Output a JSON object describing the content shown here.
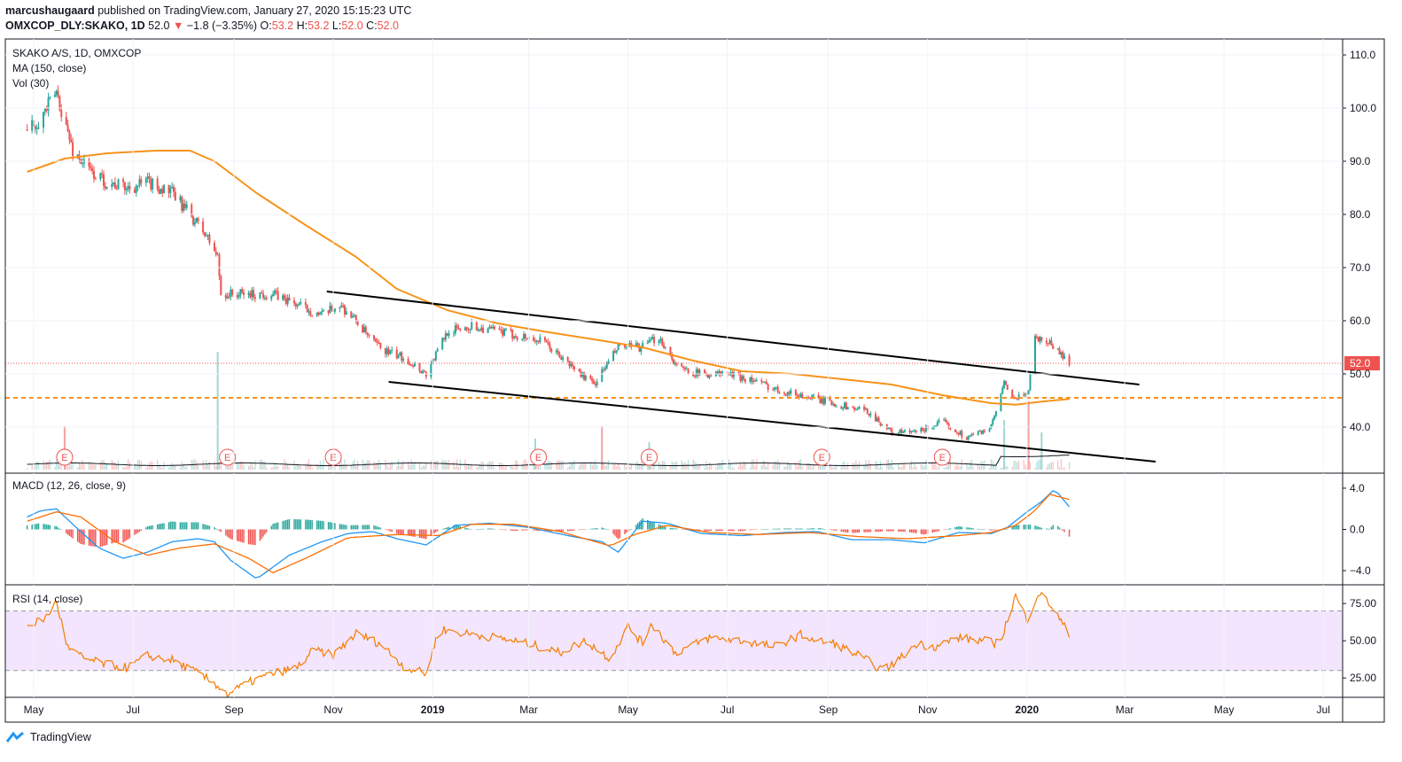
{
  "header": {
    "author": "marcushaugaard",
    "published_text": "published on TradingView.com, January 27, 2020 15:15:23 UTC",
    "symbol": "OMXCOP_DLY:SKAKO, 1D",
    "last": "52.0",
    "change": "−1.8 (−3.35%)",
    "o_label": "O:",
    "o": "53.2",
    "h_label": "H:",
    "h": "53.2",
    "l_label": "L:",
    "l": "52.0",
    "c_label": "C:",
    "c": "52.0"
  },
  "legend": {
    "main": "SKAKO A/S, 1D, OMXCOP",
    "ma": "MA (150, close)",
    "vol": "Vol (30)",
    "macd": "MACD (12, 26, close, 9)",
    "rsi": "RSI (14, close)"
  },
  "footer": {
    "brand": "TradingView"
  },
  "colors": {
    "up": "#26a69a",
    "down": "#ef5350",
    "ma": "#f7931a",
    "macd": "#2196f3",
    "signal": "#ff6d00",
    "rsi": "#f57c00",
    "rsi_band": "#f3e5fd",
    "border": "#131722"
  },
  "chart_data": [
    {
      "type": "candlestick",
      "title": "SKAKO A/S, 1D, OMXCOP",
      "ylim": [
        32,
        113
      ],
      "y_ticks": [
        "110.0",
        "100.0",
        "90.0",
        "80.0",
        "70.0",
        "60.0",
        "50.0",
        "40.0"
      ],
      "x_ticks": [
        "May",
        "Jul",
        "Sep",
        "Nov",
        "2019",
        "Mar",
        "May",
        "Jul",
        "Sep",
        "Nov",
        "2020",
        "Mar",
        "May",
        "Jul"
      ],
      "last_price_label": "52.0",
      "price_path": {
        "dates": [
          "2018-04-27",
          "2018-05-05",
          "2018-05-15",
          "2018-05-25",
          "2018-06-05",
          "2018-06-15",
          "2018-06-28",
          "2018-07-10",
          "2018-07-25",
          "2018-08-05",
          "2018-08-15",
          "2018-08-22",
          "2018-08-24",
          "2018-09-05",
          "2018-09-25",
          "2018-10-10",
          "2018-10-25",
          "2018-11-05",
          "2018-11-15",
          "2018-11-25",
          "2018-12-05",
          "2018-12-15",
          "2018-12-28",
          "2019-01-10",
          "2019-01-25",
          "2019-02-10",
          "2019-02-25",
          "2019-03-10",
          "2019-03-25",
          "2019-04-10",
          "2019-04-25",
          "2019-05-10",
          "2019-05-20",
          "2019-06-01",
          "2019-06-15",
          "2019-07-01",
          "2019-07-15",
          "2019-08-01",
          "2019-08-15",
          "2019-08-28",
          "2019-09-10",
          "2019-09-25",
          "2019-10-10",
          "2019-10-25",
          "2019-11-10",
          "2019-11-25",
          "2019-12-10",
          "2019-12-18",
          "2019-12-25",
          "2020-01-02",
          "2020-01-05",
          "2020-01-15",
          "2020-01-27"
        ],
        "close": [
          96,
          98,
          103,
          92,
          88,
          86,
          85,
          86,
          84,
          80,
          76,
          72,
          65,
          65,
          65,
          63,
          61,
          63,
          60,
          56,
          54,
          53,
          50,
          58,
          59,
          58,
          57,
          56,
          52,
          48,
          55,
          55,
          57,
          51,
          50,
          50,
          49,
          47,
          46,
          45,
          44,
          43,
          39,
          39,
          41,
          38,
          40,
          48,
          45,
          47,
          57,
          56,
          52
        ]
      },
      "moving_average": {
        "name": "MA (150, close)",
        "dates": [
          "2018-04-27",
          "2018-05-20",
          "2018-06-15",
          "2018-07-15",
          "2018-08-05",
          "2018-08-20",
          "2018-09-15",
          "2018-10-15",
          "2018-11-15",
          "2018-12-10",
          "2019-01-10",
          "2019-02-10",
          "2019-03-10",
          "2019-04-10",
          "2019-05-10",
          "2019-06-10",
          "2019-07-10",
          "2019-08-10",
          "2019-09-10",
          "2019-10-10",
          "2019-11-10",
          "2019-12-10",
          "2019-12-25",
          "2020-01-10",
          "2020-01-27"
        ],
        "values": [
          88,
          90.5,
          91.5,
          92,
          92,
          90,
          84,
          78,
          72,
          66,
          62,
          59.5,
          58,
          56.5,
          55,
          52.5,
          50.5,
          50,
          49,
          48,
          46,
          44.5,
          44.2,
          44.8,
          45.3
        ]
      },
      "horizontal_line": 45.5,
      "channel_upper": [
        [
          "2018-10-28",
          65.5
        ],
        [
          "2020-03-10",
          48.0
        ]
      ],
      "channel_lower": [
        [
          "2018-12-05",
          48.5
        ],
        [
          "2020-03-20",
          33.5
        ]
      ],
      "earnings_markers": [
        "2018-05-20",
        "2018-08-28",
        "2018-11-01",
        "2019-03-07",
        "2019-05-14",
        "2019-08-28",
        "2019-11-10"
      ],
      "earnings_label": "E",
      "volume": {
        "name": "Vol (30)",
        "spikes": [
          [
            "2018-05-20",
            0.35
          ],
          [
            "2018-08-22",
            0.95
          ],
          [
            "2019-03-05",
            0.25
          ],
          [
            "2019-04-15",
            0.35
          ],
          [
            "2019-05-14",
            0.22
          ],
          [
            "2019-12-18",
            0.4
          ],
          [
            "2020-01-02",
            0.55
          ],
          [
            "2020-01-10",
            0.3
          ]
        ]
      }
    },
    {
      "type": "line",
      "title": "MACD (12, 26, close, 9)",
      "ylim": [
        -5.2,
        5.2
      ],
      "y_ticks": [
        "4.0",
        "0.0",
        "−4.0"
      ],
      "series": [
        {
          "name": "MACD",
          "dates": [
            "2018-04-27",
            "2018-05-05",
            "2018-05-15",
            "2018-05-25",
            "2018-06-10",
            "2018-06-25",
            "2018-07-10",
            "2018-07-25",
            "2018-08-10",
            "2018-08-20",
            "2018-08-30",
            "2018-09-15",
            "2018-10-05",
            "2018-10-25",
            "2018-11-10",
            "2018-11-25",
            "2018-12-10",
            "2018-12-28",
            "2019-01-15",
            "2019-02-05",
            "2019-03-01",
            "2019-03-25",
            "2019-04-15",
            "2019-04-25",
            "2019-05-10",
            "2019-05-25",
            "2019-06-15",
            "2019-07-10",
            "2019-08-05",
            "2019-08-25",
            "2019-09-15",
            "2019-10-10",
            "2019-10-30",
            "2019-11-20",
            "2019-12-10",
            "2019-12-20",
            "2020-01-01",
            "2020-01-10",
            "2020-01-18",
            "2020-01-27"
          ],
          "values": [
            1.2,
            1.8,
            2.0,
            0.5,
            -1.8,
            -2.8,
            -2.2,
            -1.2,
            -0.9,
            -1.2,
            -3.0,
            -4.8,
            -2.5,
            -1.2,
            -0.4,
            -0.2,
            -0.9,
            -1.5,
            0.4,
            0.6,
            0.2,
            -0.6,
            -1.2,
            -2.2,
            0.8,
            0.6,
            -0.4,
            -0.6,
            -0.3,
            -0.2,
            -1.0,
            -1.0,
            -1.3,
            -0.3,
            -0.4,
            0.2,
            1.7,
            2.7,
            3.9,
            2.2
          ]
        },
        {
          "name": "Signal",
          "dates": [
            "2018-04-27",
            "2018-05-15",
            "2018-05-30",
            "2018-06-20",
            "2018-07-10",
            "2018-07-30",
            "2018-08-20",
            "2018-09-10",
            "2018-09-25",
            "2018-10-15",
            "2018-11-10",
            "2018-12-10",
            "2019-01-05",
            "2019-01-25",
            "2019-02-20",
            "2019-03-20",
            "2019-04-20",
            "2019-05-05",
            "2019-05-25",
            "2019-06-20",
            "2019-07-20",
            "2019-08-20",
            "2019-09-20",
            "2019-10-20",
            "2019-11-20",
            "2019-12-10",
            "2019-12-25",
            "2020-01-05",
            "2020-01-15",
            "2020-01-27"
          ],
          "values": [
            0.8,
            1.7,
            1.2,
            -1.2,
            -2.5,
            -1.8,
            -1.4,
            -2.8,
            -4.2,
            -2.8,
            -0.8,
            -0.5,
            -0.6,
            0.5,
            0.5,
            -0.2,
            -1.6,
            -0.5,
            0.4,
            -0.3,
            -0.5,
            -0.3,
            -0.7,
            -0.9,
            -0.6,
            -0.3,
            0.4,
            1.7,
            3.4,
            2.9
          ]
        }
      ]
    },
    {
      "type": "line",
      "title": "RSI (14, close)",
      "ylim": [
        12,
        87
      ],
      "y_ticks": [
        "75.00",
        "50.00",
        "25.00"
      ],
      "band": [
        30,
        70
      ],
      "series": [
        {
          "name": "RSI",
          "dates": [
            "2018-04-27",
            "2018-05-08",
            "2018-05-15",
            "2018-05-22",
            "2018-06-01",
            "2018-06-15",
            "2018-06-28",
            "2018-07-10",
            "2018-07-25",
            "2018-08-10",
            "2018-08-22",
            "2018-08-28",
            "2018-09-10",
            "2018-09-25",
            "2018-10-10",
            "2018-10-20",
            "2018-11-01",
            "2018-11-15",
            "2018-11-30",
            "2018-12-15",
            "2018-12-28",
            "2019-01-05",
            "2019-01-20",
            "2019-02-10",
            "2019-03-01",
            "2019-03-20",
            "2019-04-05",
            "2019-04-20",
            "2019-05-01",
            "2019-05-10",
            "2019-05-15",
            "2019-05-30",
            "2019-06-20",
            "2019-07-10",
            "2019-07-30",
            "2019-08-15",
            "2019-08-25",
            "2019-09-05",
            "2019-09-20",
            "2019-10-05",
            "2019-10-15",
            "2019-10-25",
            "2019-11-05",
            "2019-11-20",
            "2019-12-05",
            "2019-12-15",
            "2019-12-25",
            "2020-01-01",
            "2020-01-08",
            "2020-01-15",
            "2020-01-27"
          ],
          "values": [
            60,
            65,
            76,
            45,
            38,
            34,
            32,
            40,
            37,
            28,
            20,
            14,
            22,
            28,
            32,
            44,
            40,
            55,
            48,
            32,
            28,
            58,
            55,
            52,
            48,
            42,
            50,
            38,
            60,
            48,
            62,
            42,
            52,
            50,
            46,
            54,
            50,
            48,
            40,
            30,
            38,
            48,
            46,
            52,
            50,
            48,
            80,
            64,
            82,
            75,
            54
          ]
        }
      ]
    }
  ]
}
